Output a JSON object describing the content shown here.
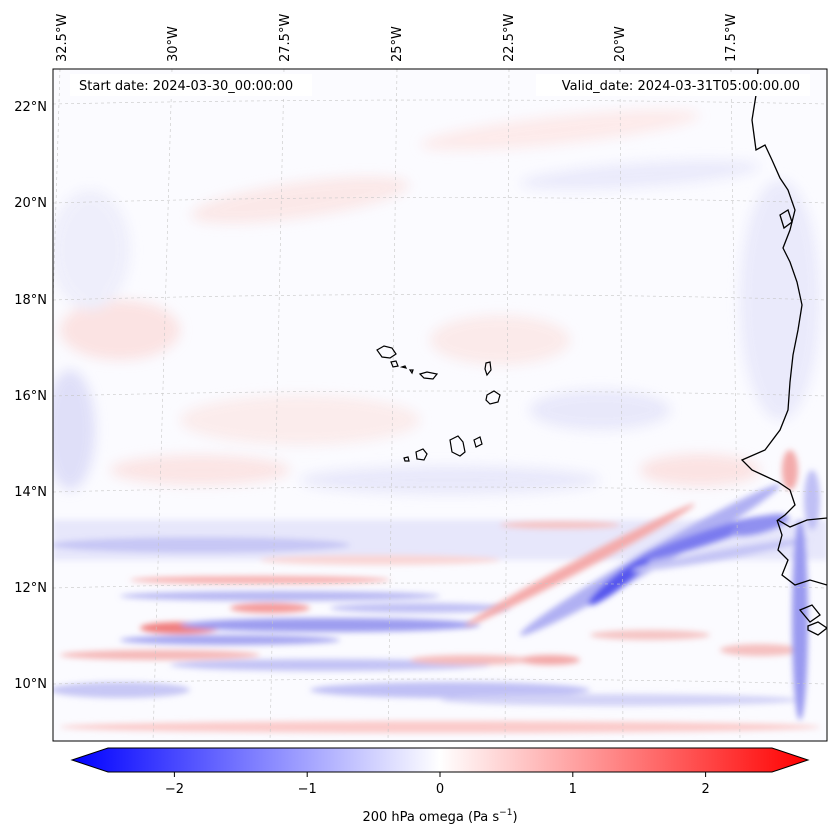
{
  "map": {
    "start_date": "Start date: 2024-03-30_00:00:00",
    "valid_date": "Valid_date: 2024-03-31T05:00:00.00",
    "longitude_labels": [
      "32.5°W",
      "30°W",
      "27.5°W",
      "25°W",
      "22.5°W",
      "20°W",
      "17.5°W"
    ],
    "latitude_labels": [
      "22°N",
      "20°N",
      "18°N",
      "16°N",
      "14°N",
      "12°N",
      "10°N"
    ],
    "field": "200 hPa omega",
    "coastline_color": "#000000",
    "gridline_color": "#b0b0b0"
  },
  "colorbar": {
    "label_text": "200 hPa omega (Pa s",
    "label_exponent": "−1",
    "label_close": ")",
    "ticks": [
      {
        "label": "−2",
        "value": -2
      },
      {
        "label": "−1",
        "value": -1
      },
      {
        "label": "0",
        "value": 0
      },
      {
        "label": "1",
        "value": 1
      },
      {
        "label": "2",
        "value": 2
      }
    ],
    "range": [
      -2.5,
      2.5
    ],
    "extend": "both",
    "colormap": "bwr",
    "low_color": "#0000ff",
    "mid_color": "#ffffff",
    "high_color": "#ff0000"
  }
}
